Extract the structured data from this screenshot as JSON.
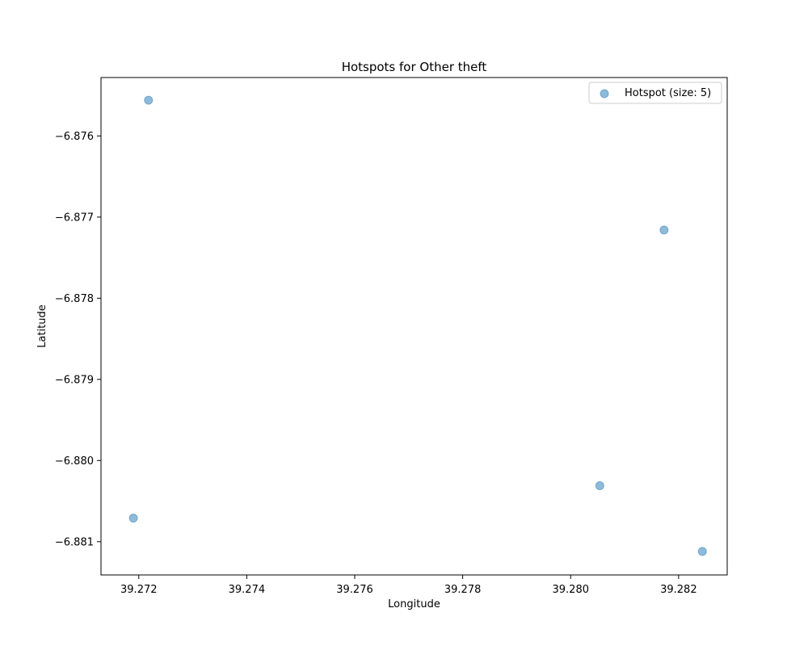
{
  "chart_data": {
    "type": "scatter",
    "title": "Hotspots for Other theft",
    "xlabel": "Longitude",
    "ylabel": "Latitude",
    "xlim": [
      39.2713,
      39.2829
    ],
    "ylim": [
      -6.88141,
      -6.87528
    ],
    "xticks": [
      39.272,
      39.274,
      39.276,
      39.278,
      39.28,
      39.282
    ],
    "xtick_labels": [
      "39.272",
      "39.274",
      "39.276",
      "39.278",
      "39.280",
      "39.282"
    ],
    "yticks": [
      -6.876,
      -6.877,
      -6.878,
      -6.879,
      -6.88,
      -6.881
    ],
    "ytick_labels": [
      "−6.876",
      "−6.877",
      "−6.878",
      "−6.879",
      "−6.880",
      "−6.881"
    ],
    "grid": false,
    "legend_position": "top-right",
    "series": [
      {
        "name": "Hotspot (size: 5)",
        "color": "#1f77b4",
        "alpha": 0.5,
        "x": [
          39.27218,
          39.28173,
          39.28054,
          39.2719,
          39.28244
        ],
        "y": [
          -6.87556,
          -6.87716,
          -6.88031,
          -6.88071,
          -6.88112
        ]
      }
    ]
  }
}
